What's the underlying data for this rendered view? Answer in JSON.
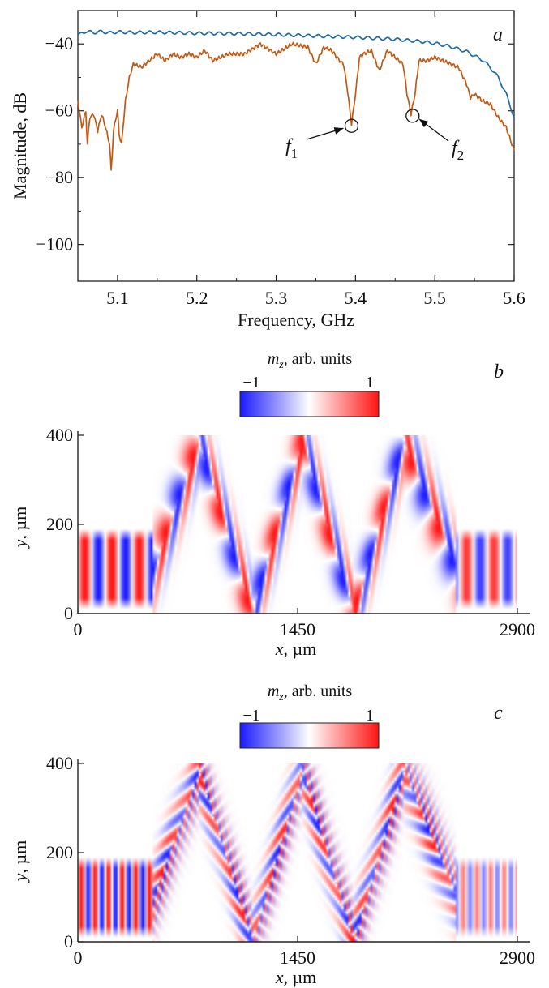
{
  "chart_data": [
    {
      "panel": "a",
      "type": "line",
      "xlabel": "Frequency, GHz",
      "ylabel": "Magnitude, dB",
      "xlim": [
        5.05,
        5.6
      ],
      "ylim": [
        -111,
        -30
      ],
      "xticks": [
        "5.1",
        "5.2",
        "5.3",
        "5.4",
        "5.5",
        "5.6"
      ],
      "yticks": [
        "−40",
        "−60",
        "−80",
        "−100"
      ],
      "series": [
        {
          "color": "#1f6aa5",
          "x": [
            5.05,
            5.06,
            5.07,
            5.08,
            5.09,
            5.1,
            5.12,
            5.15,
            5.2,
            5.25,
            5.3,
            5.35,
            5.4,
            5.45,
            5.48,
            5.5,
            5.52,
            5.54,
            5.56,
            5.57,
            5.58,
            5.59,
            5.6
          ],
          "y": [
            -37.5,
            -36.2,
            -36.6,
            -36.3,
            -36.7,
            -36.4,
            -36.6,
            -36.5,
            -36.8,
            -36.9,
            -37.2,
            -37.6,
            -38.0,
            -38.6,
            -39.2,
            -39.8,
            -40.8,
            -42.3,
            -44.8,
            -47.0,
            -50.0,
            -55.0,
            -62.0
          ]
        },
        {
          "color": "#c05a17",
          "x": [
            5.05,
            5.055,
            5.06,
            5.062,
            5.065,
            5.07,
            5.075,
            5.08,
            5.085,
            5.09,
            5.092,
            5.095,
            5.098,
            5.1,
            5.102,
            5.105,
            5.11,
            5.115,
            5.12,
            5.13,
            5.14,
            5.15,
            5.16,
            5.17,
            5.18,
            5.19,
            5.2,
            5.21,
            5.22,
            5.24,
            5.26,
            5.28,
            5.3,
            5.32,
            5.34,
            5.35,
            5.36,
            5.37,
            5.38,
            5.385,
            5.39,
            5.395,
            5.4,
            5.405,
            5.41,
            5.42,
            5.43,
            5.44,
            5.45,
            5.46,
            5.465,
            5.47,
            5.475,
            5.48,
            5.49,
            5.5,
            5.51,
            5.52,
            5.53,
            5.54,
            5.545,
            5.55,
            5.56,
            5.57,
            5.58,
            5.59,
            5.6
          ],
          "y": [
            -57,
            -65,
            -60,
            -70,
            -62,
            -61,
            -66,
            -61,
            -65,
            -70,
            -78,
            -66,
            -62,
            -60,
            -67,
            -70,
            -57,
            -50,
            -46,
            -47,
            -45,
            -43,
            -45,
            -43,
            -44,
            -43,
            -44,
            -42,
            -45,
            -43,
            -43,
            -40,
            -43,
            -40,
            -41,
            -46,
            -41,
            -42,
            -45,
            -46,
            -54,
            -64,
            -55,
            -44,
            -43,
            -42,
            -48,
            -42,
            -44,
            -46,
            -55,
            -61,
            -55,
            -45,
            -45,
            -44,
            -45,
            -46,
            -47,
            -52,
            -56,
            -55,
            -57,
            -58,
            -62,
            -65,
            -72
          ]
        }
      ],
      "annotations": [
        {
          "label": "f",
          "subscript": "1",
          "x": 5.395,
          "y": -64.5
        },
        {
          "label": "f",
          "subscript": "2",
          "x": 5.472,
          "y": -61.5
        }
      ]
    },
    {
      "panel": "b",
      "type": "heatmap",
      "colorbar_label": "m",
      "colorbar_label_sub": "z",
      "colorbar_label_rest": ", arb. units",
      "colorbar_min": "−1",
      "colorbar_max": "1",
      "xlabel_var": "x",
      "xlabel_unit": ", µm",
      "ylabel_var": "y",
      "ylabel_unit": ", µm",
      "xlim": [
        0,
        2900
      ],
      "ylim": [
        0,
        400
      ],
      "xticks": [
        "0",
        "1450",
        "2900"
      ],
      "yticks": [
        "0",
        "200",
        "400"
      ],
      "beam_vertices_x": [
        0,
        500,
        800,
        1150,
        1480,
        1820,
        2150,
        2500,
        2900
      ],
      "beam_vertices_y": [
        100,
        100,
        385,
        0,
        385,
        0,
        385,
        100,
        100
      ],
      "wavelength_um": 180,
      "colormap": [
        "#1a1aff",
        "#ffffff",
        "#ff1414"
      ]
    },
    {
      "panel": "c",
      "type": "heatmap",
      "colorbar_label": "m",
      "colorbar_label_sub": "z",
      "colorbar_label_rest": ", arb. units",
      "colorbar_min": "−1",
      "colorbar_max": "1",
      "xlabel_var": "x",
      "xlabel_unit": ", µm",
      "ylabel_var": "y",
      "ylabel_unit": ", µm",
      "xlim": [
        0,
        2900
      ],
      "ylim": [
        0,
        400
      ],
      "xticks": [
        "0",
        "1450",
        "2900"
      ],
      "yticks": [
        "0",
        "200",
        "400"
      ],
      "beam_vertices_x": [
        0,
        500,
        800,
        1150,
        1480,
        1820,
        2150,
        2500,
        2900
      ],
      "beam_vertices_y": [
        100,
        100,
        385,
        0,
        385,
        0,
        385,
        100,
        100
      ],
      "wavelength_um": 90,
      "colormap": [
        "#1a1aff",
        "#ffffff",
        "#ff1414"
      ]
    }
  ]
}
